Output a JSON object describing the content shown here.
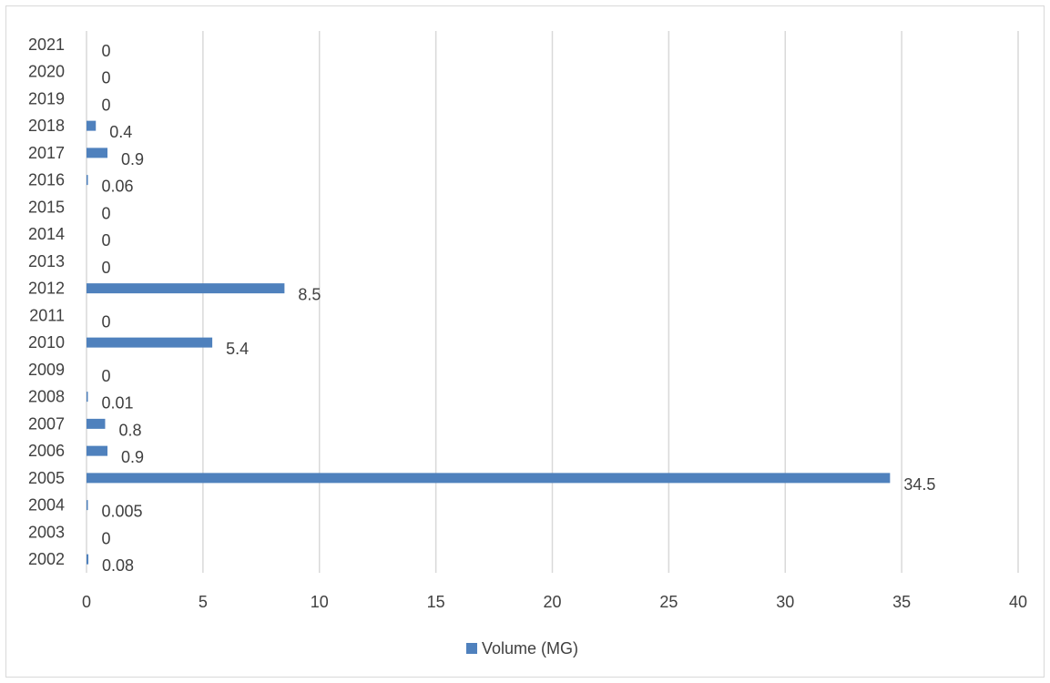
{
  "chart_data": {
    "type": "bar",
    "orientation": "horizontal",
    "categories": [
      "2002",
      "2003",
      "2004",
      "2005",
      "2006",
      "2007",
      "2008",
      "2009",
      "2010",
      "2011",
      "2012",
      "2013",
      "2014",
      "2015",
      "2016",
      "2017",
      "2018",
      "2019",
      "2020",
      "2021"
    ],
    "series": [
      {
        "name": "Volume (MG)",
        "color": "#4f81bd",
        "values": [
          0.08,
          0,
          0.005,
          34.5,
          0.9,
          0.8,
          0.01,
          0,
          5.4,
          0,
          8.5,
          0,
          0,
          0,
          0.06,
          0.9,
          0.4,
          0,
          0,
          0
        ],
        "labels": [
          "0.08",
          "0",
          "0.005",
          "34.5",
          "0.9",
          "0.8",
          "0.01",
          "0",
          "5.4",
          "0",
          "8.5",
          "0",
          "0",
          "0",
          "0.06",
          "0.9",
          "0.4",
          "0",
          "0",
          "0"
        ]
      }
    ],
    "xlim": [
      0,
      40
    ],
    "xticks": [
      "0",
      "5",
      "10",
      "15",
      "20",
      "25",
      "30",
      "35",
      "40"
    ],
    "grid": true,
    "legend_position": "bottom"
  }
}
